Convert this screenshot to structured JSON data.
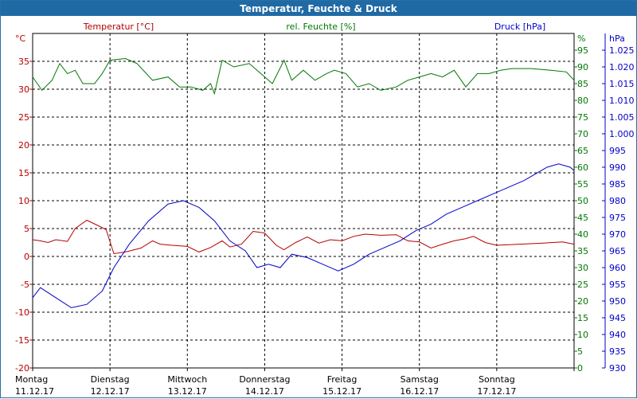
{
  "window": {
    "title": "Temperatur, Feuchte & Druck"
  },
  "colors": {
    "temperature": "#b40000",
    "humidity": "#007800",
    "pressure": "#0000c8",
    "grid": "#000000"
  },
  "chart_data": {
    "type": "line",
    "title": "Temperatur, Feuchte & Druck",
    "legend_labels": {
      "temperature": "Temperatur [°C]",
      "humidity": "rel. Feuchte [%]",
      "pressure": "Druck [hPa]"
    },
    "axes": {
      "left": {
        "unit": "°C",
        "min": -20,
        "max": 40,
        "ticks": [
          -20,
          -15,
          -10,
          -5,
          0,
          5,
          10,
          15,
          20,
          25,
          30,
          35
        ]
      },
      "right_humidity": {
        "unit": "%",
        "min": 0,
        "max": 100,
        "ticks": [
          0,
          5,
          10,
          15,
          20,
          25,
          30,
          35,
          40,
          45,
          50,
          55,
          60,
          65,
          70,
          75,
          80,
          85,
          90,
          95
        ]
      },
      "right_pressure": {
        "unit": "hPa",
        "min": 930,
        "max": 1030,
        "tick_labels": [
          "930",
          "935",
          "940",
          "945",
          "950",
          "955",
          "960",
          "965",
          "970",
          "975",
          "980",
          "985",
          "990",
          "995",
          "1.000",
          "1.005",
          "1.010",
          "1.015",
          "1.020",
          "1.025"
        ]
      }
    },
    "x_days": [
      {
        "day": "Montag",
        "date": "11.12.17"
      },
      {
        "day": "Dienstag",
        "date": "12.12.17"
      },
      {
        "day": "Mittwoch",
        "date": "13.12.17"
      },
      {
        "day": "Donnerstag",
        "date": "14.12.17"
      },
      {
        "day": "Freitag",
        "date": "15.12.17"
      },
      {
        "day": "Samstag",
        "date": "16.12.17"
      },
      {
        "day": "Sonntag",
        "date": "17.12.17"
      }
    ],
    "series": [
      {
        "name": "Temperatur [°C]",
        "axis": "left",
        "points": [
          [
            0,
            3.0
          ],
          [
            0.1,
            2.8
          ],
          [
            0.2,
            2.5
          ],
          [
            0.3,
            3.0
          ],
          [
            0.45,
            2.7
          ],
          [
            0.55,
            5.0
          ],
          [
            0.7,
            6.5
          ],
          [
            0.85,
            5.5
          ],
          [
            0.95,
            4.8
          ],
          [
            1.05,
            0.5
          ],
          [
            1.2,
            0.8
          ],
          [
            1.4,
            1.5
          ],
          [
            1.55,
            2.8
          ],
          [
            1.65,
            2.2
          ],
          [
            1.8,
            2.0
          ],
          [
            2.0,
            1.8
          ],
          [
            2.15,
            0.8
          ],
          [
            2.3,
            1.6
          ],
          [
            2.45,
            2.8
          ],
          [
            2.55,
            1.7
          ],
          [
            2.7,
            2.2
          ],
          [
            2.85,
            4.5
          ],
          [
            3.0,
            4.2
          ],
          [
            3.15,
            2.0
          ],
          [
            3.25,
            1.2
          ],
          [
            3.4,
            2.5
          ],
          [
            3.55,
            3.5
          ],
          [
            3.7,
            2.4
          ],
          [
            3.85,
            3.0
          ],
          [
            4.0,
            2.8
          ],
          [
            4.15,
            3.6
          ],
          [
            4.3,
            4.0
          ],
          [
            4.5,
            3.8
          ],
          [
            4.7,
            3.9
          ],
          [
            4.85,
            2.8
          ],
          [
            5.0,
            2.6
          ],
          [
            5.15,
            1.5
          ],
          [
            5.3,
            2.2
          ],
          [
            5.45,
            2.8
          ],
          [
            5.6,
            3.2
          ],
          [
            5.7,
            3.6
          ],
          [
            5.85,
            2.5
          ],
          [
            6.0,
            2.0
          ],
          [
            6.3,
            2.2
          ],
          [
            6.6,
            2.4
          ],
          [
            6.85,
            2.6
          ],
          [
            7.0,
            2.2
          ]
        ]
      },
      {
        "name": "rel. Feuchte [%]",
        "axis": "right_humidity",
        "points": [
          [
            0,
            87
          ],
          [
            0.12,
            83
          ],
          [
            0.25,
            86
          ],
          [
            0.35,
            91
          ],
          [
            0.45,
            88
          ],
          [
            0.55,
            89
          ],
          [
            0.65,
            85
          ],
          [
            0.8,
            85
          ],
          [
            0.9,
            88
          ],
          [
            1.0,
            92
          ],
          [
            1.2,
            92.5
          ],
          [
            1.35,
            91
          ],
          [
            1.55,
            86
          ],
          [
            1.75,
            87
          ],
          [
            1.9,
            84
          ],
          [
            2.05,
            84
          ],
          [
            2.2,
            83
          ],
          [
            2.3,
            85
          ],
          [
            2.35,
            82
          ],
          [
            2.45,
            92
          ],
          [
            2.6,
            90
          ],
          [
            2.8,
            91
          ],
          [
            2.95,
            88
          ],
          [
            3.1,
            85
          ],
          [
            3.25,
            92
          ],
          [
            3.35,
            86
          ],
          [
            3.5,
            89
          ],
          [
            3.65,
            86
          ],
          [
            3.8,
            88
          ],
          [
            3.9,
            89
          ],
          [
            4.05,
            88
          ],
          [
            4.2,
            84
          ],
          [
            4.35,
            85
          ],
          [
            4.5,
            83
          ],
          [
            4.7,
            84
          ],
          [
            4.85,
            86
          ],
          [
            5.0,
            87
          ],
          [
            5.15,
            88
          ],
          [
            5.3,
            87
          ],
          [
            5.45,
            89
          ],
          [
            5.6,
            84
          ],
          [
            5.75,
            88
          ],
          [
            5.9,
            88
          ],
          [
            6.05,
            89
          ],
          [
            6.2,
            89.5
          ],
          [
            6.45,
            89.5
          ],
          [
            6.7,
            89
          ],
          [
            6.9,
            88.5
          ],
          [
            7.0,
            86
          ]
        ]
      },
      {
        "name": "Druck [hPa]",
        "axis": "right_pressure",
        "points": [
          [
            0,
            951
          ],
          [
            0.1,
            954
          ],
          [
            0.3,
            951
          ],
          [
            0.5,
            948
          ],
          [
            0.7,
            949
          ],
          [
            0.9,
            953
          ],
          [
            1.05,
            960
          ],
          [
            1.25,
            967
          ],
          [
            1.5,
            974
          ],
          [
            1.75,
            979
          ],
          [
            1.95,
            980
          ],
          [
            2.15,
            978
          ],
          [
            2.35,
            974
          ],
          [
            2.55,
            968
          ],
          [
            2.75,
            965
          ],
          [
            2.9,
            960
          ],
          [
            3.05,
            961
          ],
          [
            3.2,
            960
          ],
          [
            3.35,
            964
          ],
          [
            3.55,
            963
          ],
          [
            3.75,
            961
          ],
          [
            3.95,
            959
          ],
          [
            4.15,
            961
          ],
          [
            4.35,
            964
          ],
          [
            4.55,
            966
          ],
          [
            4.75,
            968
          ],
          [
            4.95,
            971
          ],
          [
            5.15,
            973
          ],
          [
            5.35,
            976
          ],
          [
            5.55,
            978
          ],
          [
            5.75,
            980
          ],
          [
            5.95,
            982
          ],
          [
            6.15,
            984
          ],
          [
            6.35,
            986
          ],
          [
            6.5,
            988
          ],
          [
            6.65,
            990
          ],
          [
            6.8,
            991
          ],
          [
            6.95,
            990
          ],
          [
            7.0,
            989
          ]
        ]
      }
    ]
  }
}
